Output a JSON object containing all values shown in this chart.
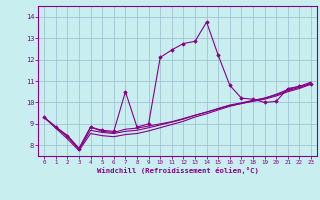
{
  "xlabel": "Windchill (Refroidissement éolien,°C)",
  "xlim": [
    -0.5,
    23.5
  ],
  "ylim": [
    7.5,
    14.5
  ],
  "xticks": [
    0,
    1,
    2,
    3,
    4,
    5,
    6,
    7,
    8,
    9,
    10,
    11,
    12,
    13,
    14,
    15,
    16,
    17,
    18,
    19,
    20,
    21,
    22,
    23
  ],
  "yticks": [
    8,
    9,
    10,
    11,
    12,
    13,
    14
  ],
  "bg_color": "#c8eef0",
  "line_color": "#880088",
  "grid_color": "#99bbcc",
  "series": {
    "main": [
      9.3,
      8.85,
      8.45,
      7.85,
      8.85,
      8.7,
      8.65,
      10.5,
      8.85,
      9.0,
      12.1,
      12.45,
      12.75,
      12.85,
      13.75,
      12.2,
      10.8,
      10.2,
      10.15,
      10.0,
      10.05,
      10.65,
      10.75,
      10.85
    ],
    "line2": [
      9.3,
      8.85,
      8.45,
      7.85,
      8.85,
      8.65,
      8.6,
      8.75,
      8.8,
      8.9,
      9.0,
      9.1,
      9.25,
      9.4,
      9.55,
      9.7,
      9.85,
      9.95,
      10.05,
      10.15,
      10.3,
      10.5,
      10.65,
      10.85
    ],
    "line3": [
      9.3,
      8.85,
      8.4,
      7.8,
      8.7,
      8.6,
      8.55,
      8.65,
      8.7,
      8.82,
      8.95,
      9.08,
      9.22,
      9.4,
      9.55,
      9.72,
      9.88,
      9.98,
      10.1,
      10.2,
      10.35,
      10.55,
      10.7,
      10.9
    ],
    "line4": [
      9.3,
      8.8,
      8.3,
      7.75,
      8.55,
      8.45,
      8.4,
      8.5,
      8.55,
      8.67,
      8.82,
      8.97,
      9.12,
      9.32,
      9.47,
      9.65,
      9.82,
      9.95,
      10.07,
      10.2,
      10.38,
      10.6,
      10.75,
      10.95
    ]
  }
}
